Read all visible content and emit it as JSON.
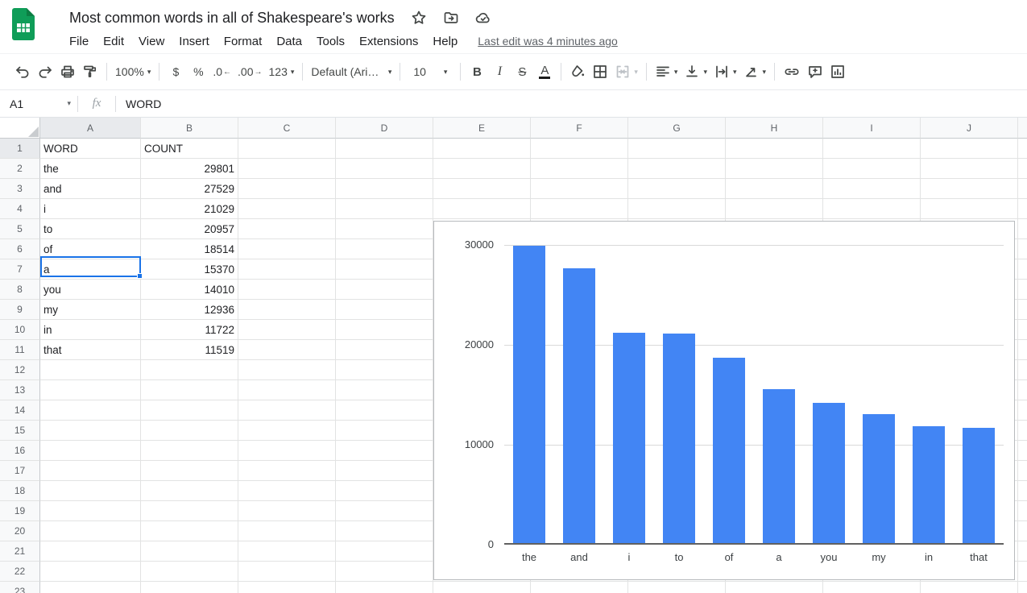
{
  "header": {
    "title": "Most common words in all of Shakespeare's works",
    "menu": [
      "File",
      "Edit",
      "View",
      "Insert",
      "Format",
      "Data",
      "Tools",
      "Extensions",
      "Help"
    ],
    "last_edit": "Last edit was 4 minutes ago",
    "icons": [
      "sheets-logo",
      "star-icon",
      "move-folder-icon",
      "cloud-saved-icon"
    ]
  },
  "toolbar": {
    "zoom": "100%",
    "currency": "$",
    "percent": "%",
    "dec_left": ".0",
    "dec_right": ".00",
    "number_format": "123",
    "font": "Default (Ari…",
    "font_size": "10",
    "bold": "B",
    "italic": "I",
    "strike": "S",
    "text_color": "A",
    "icons": [
      "undo-icon",
      "redo-icon",
      "print-icon",
      "paint-format-icon",
      "fill-color-icon",
      "borders-icon",
      "merge-cells-icon",
      "horizontal-align-icon",
      "vertical-align-icon",
      "text-wrap-icon",
      "text-rotation-icon",
      "insert-link-icon",
      "insert-comment-icon",
      "insert-chart-icon"
    ]
  },
  "formula_bar": {
    "name_box": "A1",
    "fx": "fx",
    "value": "WORD"
  },
  "grid": {
    "columns": [
      "A",
      "B",
      "C",
      "D",
      "E",
      "F",
      "G",
      "H",
      "I",
      "J"
    ],
    "visible_rows": 23,
    "selected_cell": "A1",
    "selected_column": "A",
    "selected_row": 1
  },
  "sheet_table": {
    "headers": [
      "WORD",
      "COUNT"
    ],
    "rows": [
      [
        "the",
        "29801"
      ],
      [
        "and",
        "27529"
      ],
      [
        "i",
        "21029"
      ],
      [
        "to",
        "20957"
      ],
      [
        "of",
        "18514"
      ],
      [
        "a",
        "15370"
      ],
      [
        "you",
        "14010"
      ],
      [
        "my",
        "12936"
      ],
      [
        "in",
        "11722"
      ],
      [
        "that",
        "11519"
      ]
    ]
  },
  "chart_data": {
    "type": "bar",
    "title": "",
    "categories": [
      "the",
      "and",
      "i",
      "to",
      "of",
      "a",
      "you",
      "my",
      "in",
      "that"
    ],
    "values": [
      29801,
      27529,
      21029,
      20957,
      18514,
      15370,
      14010,
      12936,
      11722,
      11519
    ],
    "xlabel": "",
    "ylabel": "",
    "ylim": [
      0,
      30000
    ],
    "yticks": [
      0,
      10000,
      20000,
      30000
    ],
    "grid": true,
    "legend": "none",
    "bar_color": "#4285f4"
  },
  "colors": {
    "accent_blue": "#1a73e8",
    "bar_blue": "#4285f4",
    "logo_green": "#0f9d58",
    "logo_green_dark": "#0c7e43",
    "grid_line": "#e2e3e3",
    "header_bg": "#f8f9fa",
    "header_bg_selected": "#e8eaed"
  }
}
